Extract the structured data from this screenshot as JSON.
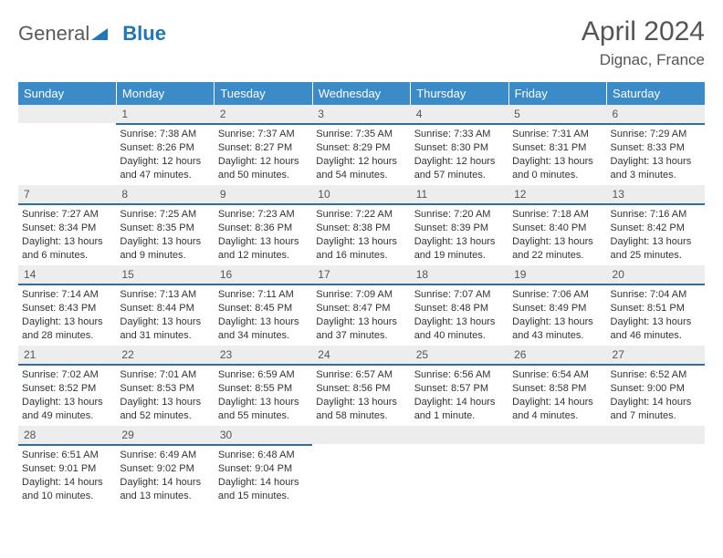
{
  "brand": {
    "part1": "General",
    "part2": "Blue"
  },
  "title": "April 2024",
  "location": "Dignac, France",
  "colors": {
    "header_bg": "#3b8bc9",
    "header_text": "#ffffff",
    "daynum_bg": "#ededed",
    "daynum_border": "#2f6ea3",
    "text": "#333333",
    "logo_gray": "#5a5a5a",
    "logo_blue": "#2176b8"
  },
  "weekdays": [
    "Sunday",
    "Monday",
    "Tuesday",
    "Wednesday",
    "Thursday",
    "Friday",
    "Saturday"
  ],
  "weeks": [
    [
      {
        "n": "",
        "empty": true
      },
      {
        "n": "1",
        "sunrise": "Sunrise: 7:38 AM",
        "sunset": "Sunset: 8:26 PM",
        "day1": "Daylight: 12 hours",
        "day2": "and 47 minutes."
      },
      {
        "n": "2",
        "sunrise": "Sunrise: 7:37 AM",
        "sunset": "Sunset: 8:27 PM",
        "day1": "Daylight: 12 hours",
        "day2": "and 50 minutes."
      },
      {
        "n": "3",
        "sunrise": "Sunrise: 7:35 AM",
        "sunset": "Sunset: 8:29 PM",
        "day1": "Daylight: 12 hours",
        "day2": "and 54 minutes."
      },
      {
        "n": "4",
        "sunrise": "Sunrise: 7:33 AM",
        "sunset": "Sunset: 8:30 PM",
        "day1": "Daylight: 12 hours",
        "day2": "and 57 minutes."
      },
      {
        "n": "5",
        "sunrise": "Sunrise: 7:31 AM",
        "sunset": "Sunset: 8:31 PM",
        "day1": "Daylight: 13 hours",
        "day2": "and 0 minutes."
      },
      {
        "n": "6",
        "sunrise": "Sunrise: 7:29 AM",
        "sunset": "Sunset: 8:33 PM",
        "day1": "Daylight: 13 hours",
        "day2": "and 3 minutes."
      }
    ],
    [
      {
        "n": "7",
        "sunrise": "Sunrise: 7:27 AM",
        "sunset": "Sunset: 8:34 PM",
        "day1": "Daylight: 13 hours",
        "day2": "and 6 minutes."
      },
      {
        "n": "8",
        "sunrise": "Sunrise: 7:25 AM",
        "sunset": "Sunset: 8:35 PM",
        "day1": "Daylight: 13 hours",
        "day2": "and 9 minutes."
      },
      {
        "n": "9",
        "sunrise": "Sunrise: 7:23 AM",
        "sunset": "Sunset: 8:36 PM",
        "day1": "Daylight: 13 hours",
        "day2": "and 12 minutes."
      },
      {
        "n": "10",
        "sunrise": "Sunrise: 7:22 AM",
        "sunset": "Sunset: 8:38 PM",
        "day1": "Daylight: 13 hours",
        "day2": "and 16 minutes."
      },
      {
        "n": "11",
        "sunrise": "Sunrise: 7:20 AM",
        "sunset": "Sunset: 8:39 PM",
        "day1": "Daylight: 13 hours",
        "day2": "and 19 minutes."
      },
      {
        "n": "12",
        "sunrise": "Sunrise: 7:18 AM",
        "sunset": "Sunset: 8:40 PM",
        "day1": "Daylight: 13 hours",
        "day2": "and 22 minutes."
      },
      {
        "n": "13",
        "sunrise": "Sunrise: 7:16 AM",
        "sunset": "Sunset: 8:42 PM",
        "day1": "Daylight: 13 hours",
        "day2": "and 25 minutes."
      }
    ],
    [
      {
        "n": "14",
        "sunrise": "Sunrise: 7:14 AM",
        "sunset": "Sunset: 8:43 PM",
        "day1": "Daylight: 13 hours",
        "day2": "and 28 minutes."
      },
      {
        "n": "15",
        "sunrise": "Sunrise: 7:13 AM",
        "sunset": "Sunset: 8:44 PM",
        "day1": "Daylight: 13 hours",
        "day2": "and 31 minutes."
      },
      {
        "n": "16",
        "sunrise": "Sunrise: 7:11 AM",
        "sunset": "Sunset: 8:45 PM",
        "day1": "Daylight: 13 hours",
        "day2": "and 34 minutes."
      },
      {
        "n": "17",
        "sunrise": "Sunrise: 7:09 AM",
        "sunset": "Sunset: 8:47 PM",
        "day1": "Daylight: 13 hours",
        "day2": "and 37 minutes."
      },
      {
        "n": "18",
        "sunrise": "Sunrise: 7:07 AM",
        "sunset": "Sunset: 8:48 PM",
        "day1": "Daylight: 13 hours",
        "day2": "and 40 minutes."
      },
      {
        "n": "19",
        "sunrise": "Sunrise: 7:06 AM",
        "sunset": "Sunset: 8:49 PM",
        "day1": "Daylight: 13 hours",
        "day2": "and 43 minutes."
      },
      {
        "n": "20",
        "sunrise": "Sunrise: 7:04 AM",
        "sunset": "Sunset: 8:51 PM",
        "day1": "Daylight: 13 hours",
        "day2": "and 46 minutes."
      }
    ],
    [
      {
        "n": "21",
        "sunrise": "Sunrise: 7:02 AM",
        "sunset": "Sunset: 8:52 PM",
        "day1": "Daylight: 13 hours",
        "day2": "and 49 minutes."
      },
      {
        "n": "22",
        "sunrise": "Sunrise: 7:01 AM",
        "sunset": "Sunset: 8:53 PM",
        "day1": "Daylight: 13 hours",
        "day2": "and 52 minutes."
      },
      {
        "n": "23",
        "sunrise": "Sunrise: 6:59 AM",
        "sunset": "Sunset: 8:55 PM",
        "day1": "Daylight: 13 hours",
        "day2": "and 55 minutes."
      },
      {
        "n": "24",
        "sunrise": "Sunrise: 6:57 AM",
        "sunset": "Sunset: 8:56 PM",
        "day1": "Daylight: 13 hours",
        "day2": "and 58 minutes."
      },
      {
        "n": "25",
        "sunrise": "Sunrise: 6:56 AM",
        "sunset": "Sunset: 8:57 PM",
        "day1": "Daylight: 14 hours",
        "day2": "and 1 minute."
      },
      {
        "n": "26",
        "sunrise": "Sunrise: 6:54 AM",
        "sunset": "Sunset: 8:58 PM",
        "day1": "Daylight: 14 hours",
        "day2": "and 4 minutes."
      },
      {
        "n": "27",
        "sunrise": "Sunrise: 6:52 AM",
        "sunset": "Sunset: 9:00 PM",
        "day1": "Daylight: 14 hours",
        "day2": "and 7 minutes."
      }
    ],
    [
      {
        "n": "28",
        "sunrise": "Sunrise: 6:51 AM",
        "sunset": "Sunset: 9:01 PM",
        "day1": "Daylight: 14 hours",
        "day2": "and 10 minutes."
      },
      {
        "n": "29",
        "sunrise": "Sunrise: 6:49 AM",
        "sunset": "Sunset: 9:02 PM",
        "day1": "Daylight: 14 hours",
        "day2": "and 13 minutes."
      },
      {
        "n": "30",
        "sunrise": "Sunrise: 6:48 AM",
        "sunset": "Sunset: 9:04 PM",
        "day1": "Daylight: 14 hours",
        "day2": "and 15 minutes."
      },
      {
        "n": "",
        "empty": true
      },
      {
        "n": "",
        "empty": true
      },
      {
        "n": "",
        "empty": true
      },
      {
        "n": "",
        "empty": true
      }
    ]
  ]
}
